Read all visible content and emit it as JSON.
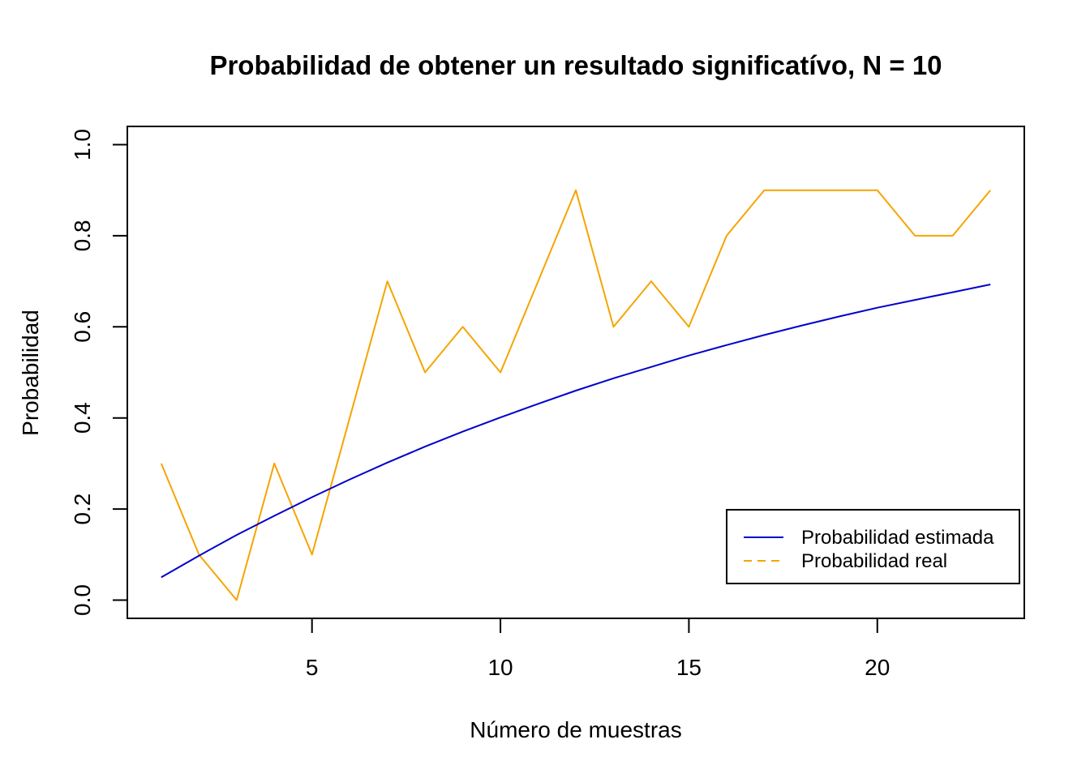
{
  "chart_data": {
    "type": "line",
    "title": "Probabilidad de obtener un resultado significatívo, N =  10",
    "xlabel": "Número de muestras",
    "ylabel": "Probabilidad",
    "xlim": [
      0.1,
      23.9
    ],
    "ylim": [
      -0.04,
      1.04
    ],
    "x_ticks": [
      5,
      10,
      15,
      20
    ],
    "x_tick_labels": [
      "5",
      "10",
      "15",
      "20"
    ],
    "y_ticks": [
      0.0,
      0.2,
      0.4,
      0.6,
      0.8,
      1.0
    ],
    "y_tick_labels": [
      "0.0",
      "0.2",
      "0.4",
      "0.6",
      "0.8",
      "1.0"
    ],
    "grid": false,
    "legend_position": "bottom-right",
    "x": [
      1,
      2,
      3,
      4,
      5,
      6,
      7,
      8,
      9,
      10,
      11,
      12,
      13,
      14,
      15,
      16,
      17,
      18,
      19,
      20,
      21,
      22,
      23
    ],
    "series": [
      {
        "name": "Probabilidad estimada",
        "color": "#0000cd",
        "style": "solid",
        "values": [
          0.05,
          0.0975,
          0.143,
          0.185,
          0.226,
          0.265,
          0.302,
          0.337,
          0.37,
          0.401,
          0.431,
          0.46,
          0.487,
          0.512,
          0.537,
          0.56,
          0.582,
          0.603,
          0.623,
          0.642,
          0.659,
          0.676,
          0.693
        ]
      },
      {
        "name": "Probabilidad real",
        "color": "#f5a500",
        "style": "dashed",
        "values": [
          0.3,
          0.1,
          0.0,
          0.3,
          0.1,
          0.4,
          0.7,
          0.5,
          0.6,
          0.5,
          0.7,
          0.9,
          0.6,
          0.7,
          0.6,
          0.8,
          0.9,
          0.9,
          0.9,
          0.9,
          0.8,
          0.8,
          0.9
        ]
      }
    ]
  }
}
